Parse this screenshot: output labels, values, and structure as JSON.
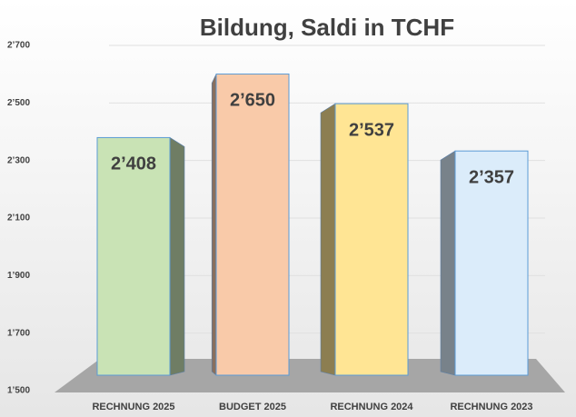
{
  "chart_data": {
    "type": "bar",
    "title": "Bildung, Saldi in TCHF",
    "categories": [
      "RECHNUNG 2025",
      "BUDGET 2025",
      "RECHNUNG 2024",
      "RECHNUNG 2023"
    ],
    "values": [
      2408,
      2650,
      2537,
      2357
    ],
    "value_labels": [
      "2’408",
      "2’650",
      "2’537",
      "2’357"
    ],
    "colors": [
      "#c9e3b5",
      "#f9caa9",
      "#ffe594",
      "#dbecfa"
    ],
    "ylim": [
      1500,
      2700
    ],
    "yticks": [
      {
        "value": 1500,
        "label": "1’500"
      },
      {
        "value": 1700,
        "label": "1’700"
      },
      {
        "value": 1900,
        "label": "1’900"
      },
      {
        "value": 2100,
        "label": "2’100"
      },
      {
        "value": 2300,
        "label": "2’300"
      },
      {
        "value": 2500,
        "label": "2’500"
      },
      {
        "value": 2700,
        "label": "2’700"
      }
    ],
    "grid": true
  }
}
